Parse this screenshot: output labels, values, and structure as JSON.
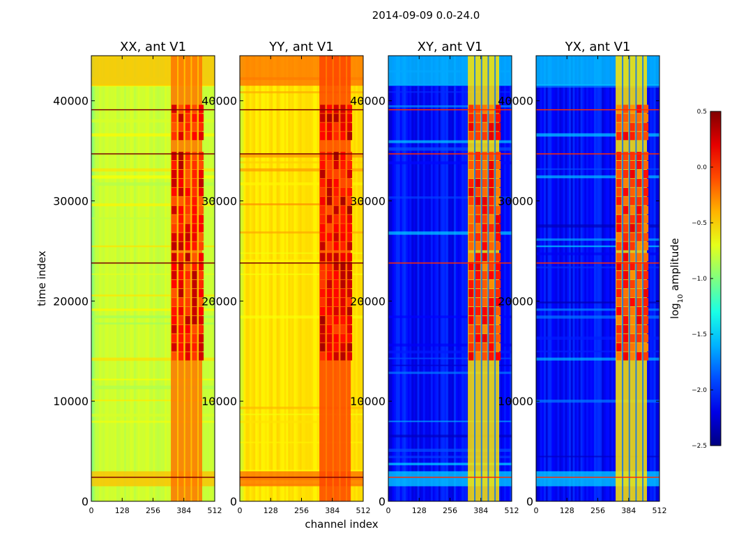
{
  "chart_data": {
    "type": "heatmap",
    "title": "2014-09-09 0.0-24.0",
    "xlabel": "channel index",
    "ylabel": "time index",
    "xlim": [
      0,
      512
    ],
    "ylim": [
      0,
      44500
    ],
    "xticks": [
      0,
      128,
      256,
      384,
      512
    ],
    "yticks": [
      0,
      10000,
      20000,
      30000,
      40000
    ],
    "ytick_labels": [
      "0",
      "10000",
      "20000",
      "30000",
      "40000"
    ],
    "panels": [
      {
        "title": "XX, ant V1",
        "polarization": "XX",
        "base_level": -0.78,
        "rfi_level": 0.35,
        "rfi_time_ranges": [
          [
            14000,
            24500
          ],
          [
            25000,
            34500
          ],
          [
            36000,
            39000
          ]
        ]
      },
      {
        "title": "YY, ant V1",
        "polarization": "YY",
        "base_level": -0.55,
        "rfi_level": 0.4,
        "rfi_time_ranges": [
          [
            14000,
            24500
          ],
          [
            25000,
            34500
          ],
          [
            36000,
            39000
          ]
        ]
      },
      {
        "title": "XY, ant V1",
        "polarization": "XY",
        "base_level": -2.1,
        "rfi_level": 0.2,
        "rfi_time_ranges": [
          [
            14000,
            24500
          ],
          [
            25000,
            34500
          ],
          [
            36000,
            39000
          ]
        ]
      },
      {
        "title": "YX, ant V1",
        "polarization": "YX",
        "base_level": -2.1,
        "rfi_level": 0.2,
        "rfi_time_ranges": [
          [
            14000,
            24500
          ],
          [
            25000,
            34500
          ],
          [
            36000,
            39000
          ]
        ]
      }
    ],
    "rfi_channel_range": [
      330,
      460
    ],
    "horizontal_event_lines": [
      2400,
      23800,
      34700,
      39100
    ],
    "colorbar": {
      "label_prefix": "log",
      "label_sub": "10",
      "label_suffix": " amplitude",
      "range": [
        -2.5,
        0.5
      ],
      "ticks": [
        0.5,
        0.0,
        -0.5,
        -1.0,
        -1.5,
        -2.0,
        -2.5
      ],
      "tick_labels": [
        "0.5",
        "0.0",
        "−0.5",
        "−1.0",
        "−1.5",
        "−2.0",
        "−2.5"
      ],
      "colormap": "jet"
    }
  }
}
